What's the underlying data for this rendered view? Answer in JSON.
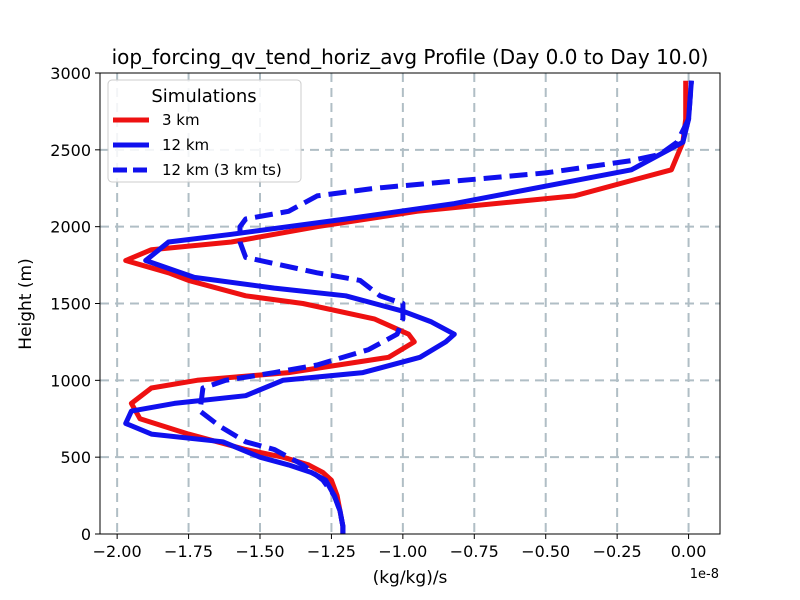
{
  "chart_data": {
    "type": "line",
    "title": "iop_forcing_qv_tend_horiz_avg Profile (Day 0.0 to Day 10.0)",
    "xlabel": "(kg/kg)/s",
    "ylabel": "Height (m)",
    "x_offset_label": "1e-8",
    "xlim": [
      -2.06,
      0.11
    ],
    "ylim": [
      0,
      3000
    ],
    "x_ticks": [
      -2.0,
      -1.75,
      -1.5,
      -1.25,
      -1.0,
      -0.75,
      -0.5,
      -0.25,
      0.0
    ],
    "x_tick_labels": [
      "−2.00",
      "−1.75",
      "−1.50",
      "−1.25",
      "−1.00",
      "−0.75",
      "−0.50",
      "−0.25",
      "0.00"
    ],
    "y_ticks": [
      0,
      500,
      1000,
      1500,
      2000,
      2500,
      3000
    ],
    "y_tick_labels": [
      "0",
      "500",
      "1000",
      "1500",
      "2000",
      "2500",
      "3000"
    ],
    "grid": true,
    "legend": {
      "title": "Simulations",
      "position": "upper-left"
    },
    "series": [
      {
        "name": "3 km",
        "color": "#ee1111",
        "style": "solid",
        "x": [
          -1.21,
          -1.21,
          -1.22,
          -1.23,
          -1.25,
          -1.28,
          -1.33,
          -1.42,
          -1.55,
          -1.75,
          -1.92,
          -1.95,
          -1.88,
          -1.72,
          -1.4,
          -1.05,
          -0.96,
          -0.98,
          -1.1,
          -1.35,
          -1.55,
          -1.75,
          -1.82,
          -1.97,
          -1.88,
          -1.6,
          -1.3,
          -0.95,
          -0.4,
          -0.06,
          -0.02,
          -0.01,
          -0.01
        ],
        "y": [
          0,
          50,
          150,
          250,
          350,
          400,
          450,
          500,
          550,
          650,
          750,
          850,
          950,
          1000,
          1050,
          1150,
          1250,
          1300,
          1400,
          1500,
          1550,
          1650,
          1700,
          1780,
          1850,
          1900,
          2000,
          2100,
          2200,
          2370,
          2550,
          2700,
          2950
        ]
      },
      {
        "name": "12 km",
        "color": "#1010ee",
        "style": "solid",
        "x": [
          -1.21,
          -1.21,
          -1.22,
          -1.24,
          -1.27,
          -1.32,
          -1.4,
          -1.5,
          -1.63,
          -1.88,
          -1.97,
          -1.95,
          -1.8,
          -1.55,
          -1.42,
          -1.14,
          -0.94,
          -0.85,
          -0.82,
          -0.9,
          -1.0,
          -1.2,
          -1.45,
          -1.73,
          -1.9,
          -1.82,
          -1.6,
          -1.2,
          -0.82,
          -0.2,
          -0.02,
          0.0,
          0.01
        ],
        "y": [
          0,
          50,
          150,
          250,
          350,
          400,
          450,
          500,
          600,
          650,
          720,
          800,
          850,
          900,
          1000,
          1050,
          1150,
          1250,
          1300,
          1380,
          1450,
          1550,
          1600,
          1670,
          1780,
          1900,
          1950,
          2050,
          2150,
          2370,
          2550,
          2700,
          2950
        ]
      },
      {
        "name": "12 km (3 km ts)",
        "color": "#1010ee",
        "style": "dashed",
        "x": [
          -1.21,
          -1.21,
          -1.22,
          -1.24,
          -1.28,
          -1.35,
          -1.45,
          -1.55,
          -1.64,
          -1.71,
          -1.7,
          -1.62,
          -1.45,
          -1.3,
          -1.12,
          -1.02,
          -1.0,
          -1.0,
          -1.08,
          -1.15,
          -1.3,
          -1.55,
          -1.57,
          -1.57,
          -1.55,
          -1.4,
          -1.3,
          -1.1,
          -0.5,
          -0.2,
          -0.1,
          -0.04,
          0.0,
          0.01
        ],
        "y": [
          0,
          50,
          150,
          250,
          350,
          450,
          550,
          600,
          700,
          800,
          950,
          1000,
          1050,
          1100,
          1200,
          1300,
          1400,
          1500,
          1550,
          1650,
          1700,
          1800,
          1900,
          2000,
          2050,
          2100,
          2200,
          2250,
          2350,
          2430,
          2470,
          2550,
          2700,
          2950
        ]
      }
    ]
  }
}
